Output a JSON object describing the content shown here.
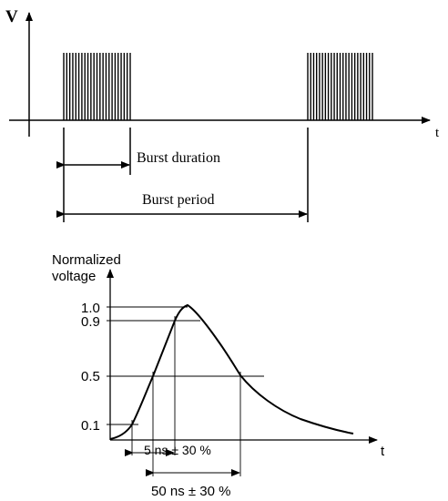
{
  "burst_diagram": {
    "v_axis_label": "V",
    "t_axis_label": "t",
    "burst_duration_label": "Burst duration",
    "burst_period_label": "Burst period",
    "pulses_per_burst": 23
  },
  "pulse_diagram": {
    "y_axis_label_line1": "Normalized",
    "y_axis_label_line2": "voltage",
    "t_axis_label": "t",
    "tick_labels": [
      "1.0",
      "0.9",
      "0.5",
      "0.1"
    ],
    "rise_time_label": "5 ns ± 30 %",
    "pulse_width_label": "50 ns ± 30 %"
  }
}
